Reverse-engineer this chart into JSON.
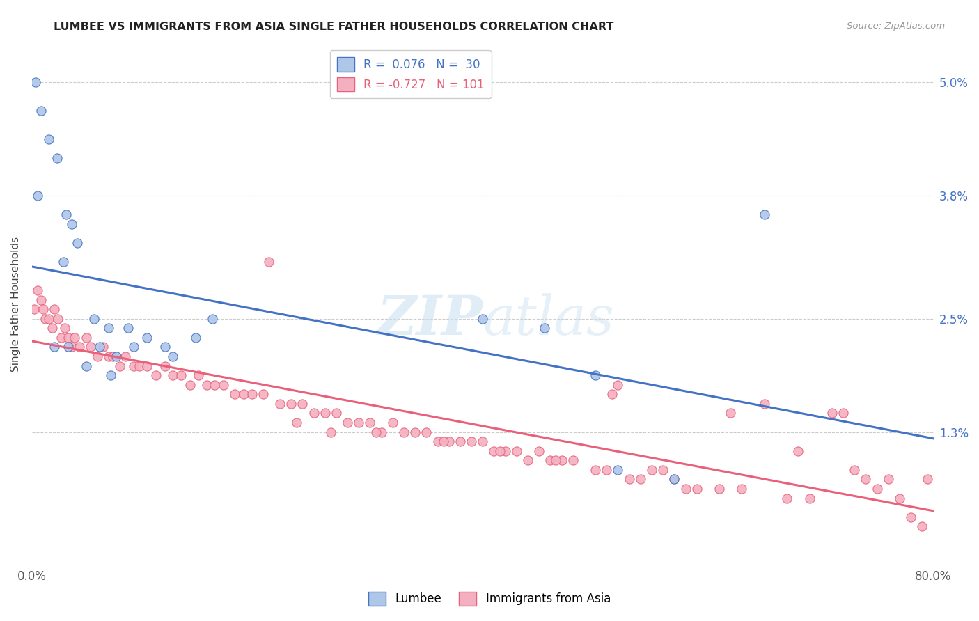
{
  "title": "LUMBEE VS IMMIGRANTS FROM ASIA SINGLE FATHER HOUSEHOLDS CORRELATION CHART",
  "source": "Source: ZipAtlas.com",
  "ylabel": "Single Father Households",
  "ytick_vals": [
    1.3,
    2.5,
    3.8,
    5.0
  ],
  "ytick_labels": [
    "1.3%",
    "2.5%",
    "3.8%",
    "5.0%"
  ],
  "xmin": 0.0,
  "xmax": 80.0,
  "ymin": -0.1,
  "ymax": 5.4,
  "lumbee_color": "#aec6e8",
  "asia_color": "#f4b0c0",
  "lumbee_line_color": "#4472c4",
  "asia_line_color": "#e8607a",
  "lumbee_x": [
    0.3,
    0.8,
    1.5,
    2.2,
    3.0,
    3.5,
    4.0,
    2.8,
    5.5,
    6.8,
    8.5,
    10.2,
    11.8,
    14.5,
    16.0,
    3.2,
    4.8,
    7.5,
    9.0,
    12.5,
    40.0,
    45.5,
    50.0,
    52.0,
    57.0,
    0.5,
    2.0,
    6.0,
    7.0,
    65.0
  ],
  "lumbee_y": [
    5.0,
    4.7,
    4.4,
    4.2,
    3.6,
    3.5,
    3.3,
    3.1,
    2.5,
    2.4,
    2.4,
    2.3,
    2.2,
    2.3,
    2.5,
    2.2,
    2.0,
    2.1,
    2.2,
    2.1,
    2.5,
    2.4,
    1.9,
    0.9,
    0.8,
    3.8,
    2.2,
    2.2,
    1.9,
    3.6
  ],
  "asia_x": [
    0.2,
    0.5,
    0.8,
    1.0,
    1.2,
    1.5,
    1.8,
    2.0,
    2.3,
    2.6,
    2.9,
    3.2,
    3.5,
    3.8,
    4.2,
    4.8,
    5.2,
    5.8,
    6.3,
    6.8,
    7.2,
    7.8,
    8.3,
    9.0,
    9.5,
    10.2,
    11.0,
    11.8,
    12.5,
    13.2,
    14.0,
    14.8,
    15.5,
    16.2,
    17.0,
    18.0,
    18.8,
    19.5,
    20.5,
    21.0,
    22.0,
    23.0,
    24.0,
    25.0,
    26.0,
    27.0,
    28.0,
    29.0,
    30.0,
    31.0,
    32.0,
    33.0,
    34.0,
    35.0,
    36.0,
    37.0,
    38.0,
    39.0,
    40.0,
    41.0,
    42.0,
    43.0,
    44.0,
    45.0,
    46.0,
    47.0,
    48.0,
    50.0,
    51.0,
    52.0,
    53.0,
    54.0,
    55.0,
    56.0,
    57.0,
    58.0,
    59.0,
    61.0,
    62.0,
    63.0,
    65.0,
    67.0,
    68.0,
    69.0,
    71.0,
    72.0,
    73.0,
    74.0,
    75.0,
    76.0,
    77.0,
    78.0,
    79.0,
    79.5,
    23.5,
    26.5,
    30.5,
    36.5,
    41.5,
    46.5,
    51.5
  ],
  "asia_y": [
    2.6,
    2.8,
    2.7,
    2.6,
    2.5,
    2.5,
    2.4,
    2.6,
    2.5,
    2.3,
    2.4,
    2.3,
    2.2,
    2.3,
    2.2,
    2.3,
    2.2,
    2.1,
    2.2,
    2.1,
    2.1,
    2.0,
    2.1,
    2.0,
    2.0,
    2.0,
    1.9,
    2.0,
    1.9,
    1.9,
    1.8,
    1.9,
    1.8,
    1.8,
    1.8,
    1.7,
    1.7,
    1.7,
    1.7,
    3.1,
    1.6,
    1.6,
    1.6,
    1.5,
    1.5,
    1.5,
    1.4,
    1.4,
    1.4,
    1.3,
    1.4,
    1.3,
    1.3,
    1.3,
    1.2,
    1.2,
    1.2,
    1.2,
    1.2,
    1.1,
    1.1,
    1.1,
    1.0,
    1.1,
    1.0,
    1.0,
    1.0,
    0.9,
    0.9,
    1.8,
    0.8,
    0.8,
    0.9,
    0.9,
    0.8,
    0.7,
    0.7,
    0.7,
    1.5,
    0.7,
    1.6,
    0.6,
    1.1,
    0.6,
    1.5,
    1.5,
    0.9,
    0.8,
    0.7,
    0.8,
    0.6,
    0.4,
    0.3,
    0.8,
    1.4,
    1.3,
    1.3,
    1.2,
    1.1,
    1.0,
    1.7
  ]
}
